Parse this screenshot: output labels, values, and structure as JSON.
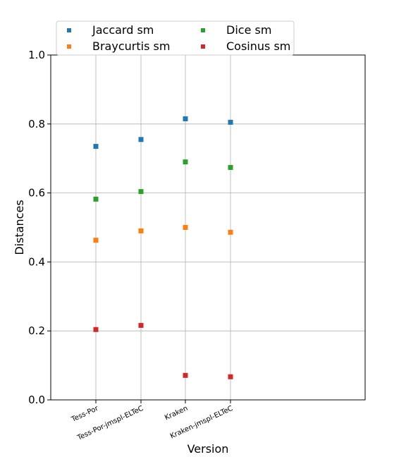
{
  "chart_data": {
    "type": "scatter",
    "title": "",
    "xlabel": "Version",
    "ylabel": "Distances",
    "categories": [
      "Tess-Por",
      "Tess-Por-jmspl-ELTeC",
      "Kraken",
      "Kraken-jmspl-ELTeC"
    ],
    "ylim": [
      0.0,
      1.0
    ],
    "yticks": [
      "0.0",
      "0.2",
      "0.4",
      "0.6",
      "0.8",
      "1.0"
    ],
    "grid": true,
    "legend_position": "top",
    "series": [
      {
        "name": "Jaccard sm",
        "color": "#1f77b4",
        "values": [
          0.735,
          0.755,
          0.815,
          0.805
        ]
      },
      {
        "name": "Braycurtis sm",
        "color": "#ff7f0e",
        "values": [
          0.463,
          0.49,
          0.5,
          0.486
        ]
      },
      {
        "name": "Dice sm",
        "color": "#2ca02c",
        "values": [
          0.582,
          0.604,
          0.69,
          0.674
        ]
      },
      {
        "name": "Cosinus sm",
        "color": "#d62728",
        "values": [
          0.204,
          0.216,
          0.071,
          0.067
        ]
      }
    ]
  }
}
